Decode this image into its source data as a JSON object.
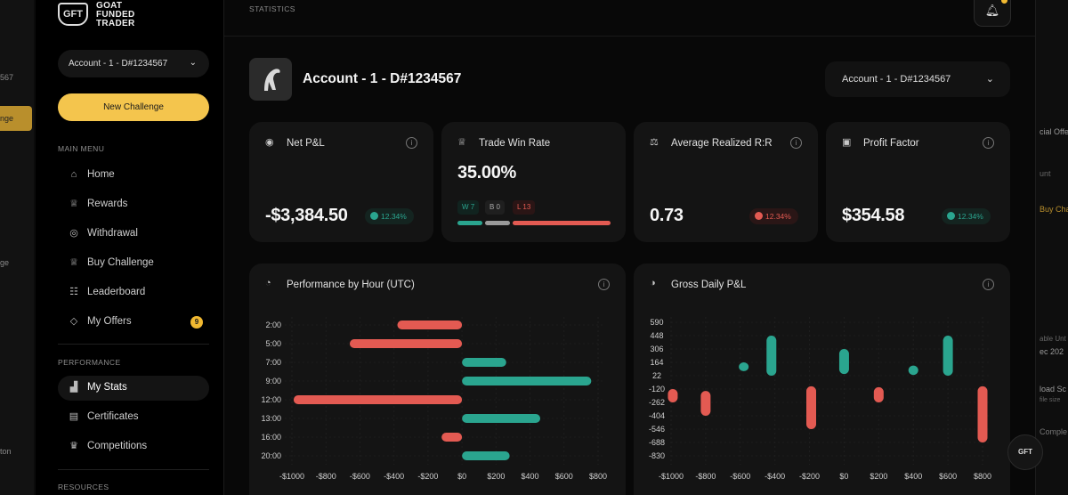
{
  "left_strip": {
    "texts": [
      "567",
      "nge",
      "ge",
      "ton"
    ],
    "button_label": "nge"
  },
  "brand": {
    "logo_text": "GFT",
    "name_line1": "GOAT",
    "name_line2": "FUNDED",
    "name_line3": "TRADER"
  },
  "sidebar": {
    "account_select": "Account - 1 - D#1234567",
    "new_challenge": "New Challenge",
    "main_menu_label": "MAIN MENU",
    "main_menu": [
      {
        "label": "Home",
        "icon": "home-icon",
        "glyph": "⌂"
      },
      {
        "label": "Rewards",
        "icon": "trophy-icon",
        "glyph": "♕"
      },
      {
        "label": "Withdrawal",
        "icon": "coins-icon",
        "glyph": "◎"
      },
      {
        "label": "Buy Challenge",
        "icon": "trophy-icon",
        "glyph": "♕"
      },
      {
        "label": "Leaderboard",
        "icon": "users-icon",
        "glyph": "☷"
      },
      {
        "label": "My Offers",
        "icon": "tag-icon",
        "glyph": "◇",
        "badge": "9"
      }
    ],
    "performance_label": "PERFORMANCE",
    "performance": [
      {
        "label": "My Stats",
        "icon": "chart-icon",
        "glyph": "▟",
        "active": true
      },
      {
        "label": "Certificates",
        "icon": "certificate-icon",
        "glyph": "▤"
      },
      {
        "label": "Competitions",
        "icon": "crown-icon",
        "glyph": "♛"
      }
    ],
    "resources_label": "RESOURCES"
  },
  "header": {
    "title": "STATISTICS",
    "account_title": "Account - 1 - D#1234567",
    "account_select": "Account - 1 - D#1234567"
  },
  "cards": {
    "net_pnl": {
      "title": "Net P&L",
      "value": "-$3,384.50",
      "change": "12.34%"
    },
    "win_rate": {
      "title": "Trade Win Rate",
      "value": "35.00%",
      "wins": "W 7",
      "breakeven": "B 0",
      "losses": "L 13"
    },
    "avg_rr": {
      "title": "Average Realized R:R",
      "value": "0.73",
      "change": "12.34%"
    },
    "profit_factor": {
      "title": "Profit Factor",
      "value": "$354.58",
      "change": "12.34%"
    }
  },
  "right_strip": {
    "texts": [
      "cial Offe",
      "unt",
      "Buy Cha",
      "able Unt",
      "ec 202",
      "load Sc",
      "file size",
      "Comple"
    ]
  },
  "colors": {
    "green": "#2aa58f",
    "red": "#e35a52",
    "accent": "#f4c54d"
  },
  "chart_data": [
    {
      "type": "bar",
      "orientation": "horizontal",
      "title": "Performance by Hour (UTC)",
      "categories": [
        "2:00",
        "5:00",
        "7:00",
        "9:00",
        "12:00",
        "13:00",
        "16:00",
        "20:00"
      ],
      "values": [
        -380,
        -660,
        260,
        760,
        -990,
        460,
        -120,
        280
      ],
      "x_ticks": [
        "-$1000",
        "-$800",
        "-$600",
        "-$400",
        "-$200",
        "$0",
        "$200",
        "$400",
        "$600",
        "$800"
      ],
      "xlim": [
        -1000,
        800
      ]
    },
    {
      "type": "bar",
      "title": "Gross Daily P&L",
      "x_ticks": [
        "-$1000",
        "-$800",
        "-$600",
        "-$400",
        "-$200",
        "$0",
        "$200",
        "$400",
        "$600",
        "$800"
      ],
      "y_ticks": [
        "590",
        "448",
        "306",
        "164",
        "22",
        "-120",
        "-262",
        "-404",
        "-546",
        "-688",
        "-830"
      ],
      "bars": [
        {
          "x": -990,
          "low": -262,
          "high": -120
        },
        {
          "x": -800,
          "low": -404,
          "high": -140
        },
        {
          "x": -580,
          "low": 70,
          "high": 164
        },
        {
          "x": -420,
          "low": 22,
          "high": 448
        },
        {
          "x": -190,
          "low": -546,
          "high": -90
        },
        {
          "x": 0,
          "low": 40,
          "high": 306
        },
        {
          "x": 200,
          "low": -262,
          "high": -100
        },
        {
          "x": 400,
          "low": 30,
          "high": 130
        },
        {
          "x": 600,
          "low": 22,
          "high": 448
        },
        {
          "x": 800,
          "low": -688,
          "high": -90
        }
      ]
    }
  ]
}
